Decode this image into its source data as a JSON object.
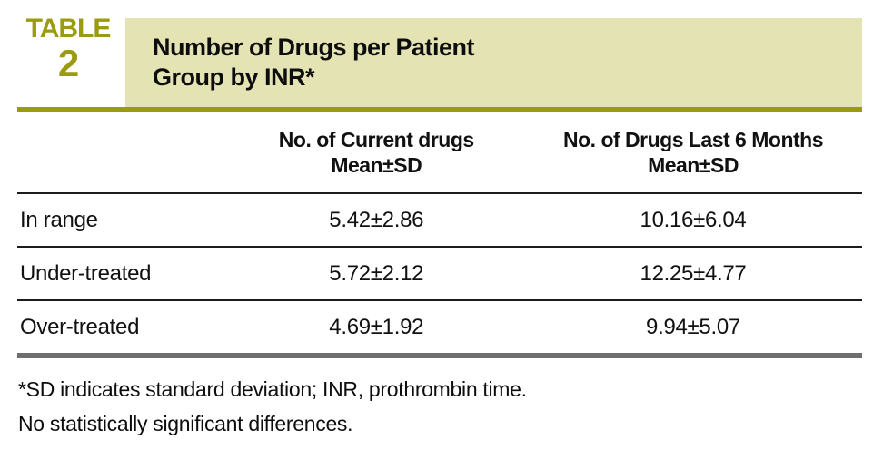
{
  "colors": {
    "olive": "#9b9b11",
    "beige": "#e4e3b3",
    "rule_gray": "#6e6e6e",
    "text": "#111111"
  },
  "label": {
    "word": "TABLE",
    "number": "2"
  },
  "title": {
    "line1": "Number of Drugs per Patient",
    "line2": "Group by INR*"
  },
  "table": {
    "columns": [
      {
        "line1": "No. of Current drugs",
        "line2": "Mean±SD"
      },
      {
        "line1": "No. of Drugs Last 6 Months",
        "line2": "Mean±SD"
      }
    ],
    "rows": [
      {
        "label": "In range",
        "current_drugs": "5.42±2.86",
        "drugs_last_6_months": "10.16±6.04"
      },
      {
        "label": "Under-treated",
        "current_drugs": "5.72±2.12",
        "drugs_last_6_months": "12.25±4.77"
      },
      {
        "label": "Over-treated",
        "current_drugs": "4.69±1.92",
        "drugs_last_6_months": "9.94±5.07"
      }
    ]
  },
  "footnotes": {
    "line1": "*SD indicates standard deviation; INR, prothrombin time.",
    "line2": "No statistically significant differences."
  }
}
